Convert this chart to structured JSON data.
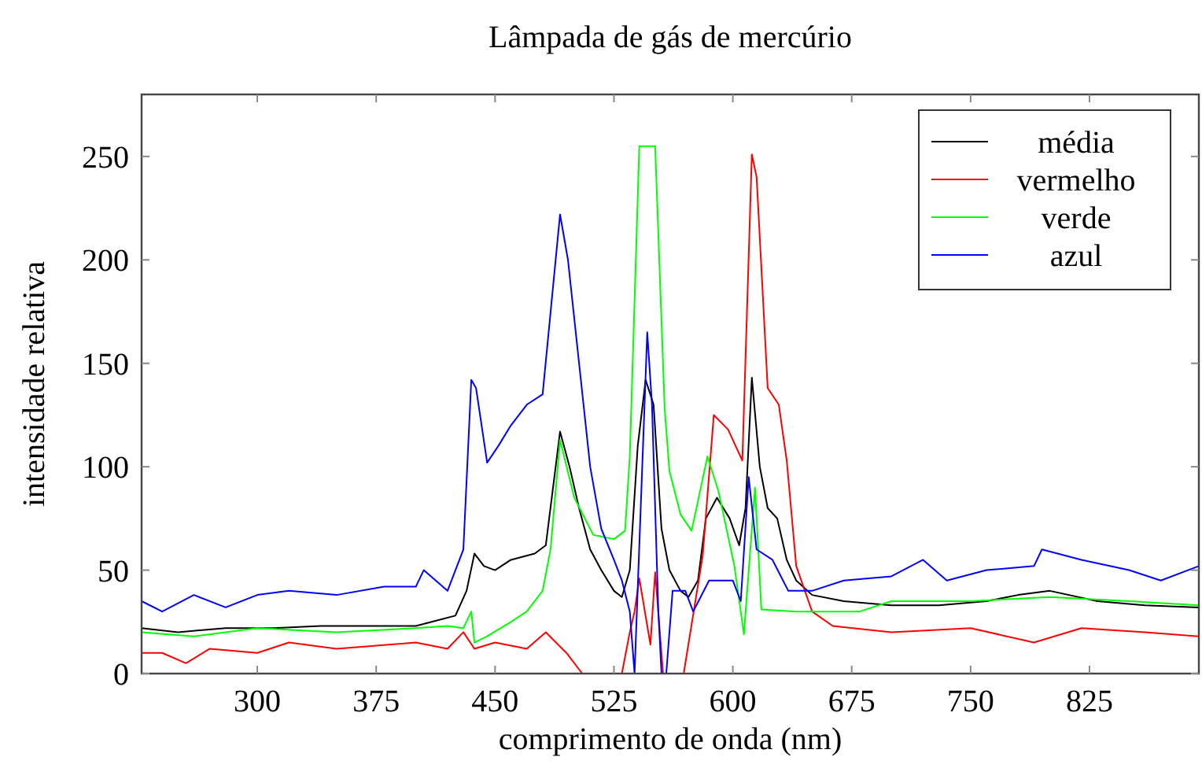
{
  "chart_data": {
    "type": "line",
    "title": "Lâmpada de gás de mercúrio",
    "xlabel": "comprimento de onda (nm)",
    "ylabel": "intensidade relativa",
    "xlim": [
      227,
      894
    ],
    "ylim": [
      0,
      280
    ],
    "xticks": [
      300,
      375,
      450,
      525,
      600,
      675,
      750,
      825
    ],
    "yticks": [
      0,
      50,
      100,
      150,
      200,
      250
    ],
    "legend": "top right",
    "marker": "none",
    "line_style": "solid",
    "series": [
      {
        "name": "média",
        "color": "#000000",
        "x": [
          227,
          250,
          280,
          310,
          340,
          370,
          400,
          410,
          425,
          432,
          437,
          443,
          450,
          460,
          475,
          482,
          491,
          497,
          503,
          510,
          517,
          525,
          530,
          535,
          540,
          545,
          550,
          555,
          560,
          567,
          572,
          578,
          583,
          590,
          598,
          604,
          608,
          612,
          617,
          622,
          628,
          634,
          640,
          650,
          670,
          700,
          730,
          760,
          780,
          800,
          830,
          860,
          894
        ],
        "values": [
          22,
          20,
          22,
          22,
          23,
          23,
          23,
          25,
          28,
          40,
          58,
          52,
          50,
          55,
          58,
          62,
          117,
          100,
          80,
          60,
          50,
          40,
          37,
          50,
          110,
          142,
          130,
          70,
          50,
          40,
          37,
          45,
          75,
          85,
          75,
          62,
          80,
          143,
          100,
          80,
          75,
          55,
          45,
          38,
          35,
          33,
          33,
          35,
          38,
          40,
          35,
          33,
          32
        ]
      },
      {
        "name": "vermelho",
        "color": "#ff0000",
        "x": [
          227,
          240,
          255,
          270,
          300,
          320,
          350,
          400,
          420,
          430,
          437,
          450,
          470,
          482,
          495,
          505,
          530,
          535,
          538,
          541,
          548,
          551,
          556,
          569,
          581,
          588,
          597,
          606,
          612,
          615,
          622,
          629,
          634,
          640,
          650,
          663,
          700,
          750,
          790,
          820,
          860,
          894
        ],
        "values": [
          10,
          10,
          5,
          12,
          10,
          15,
          12,
          15,
          12,
          20,
          12,
          15,
          12,
          20,
          10,
          0,
          0,
          20,
          30,
          46,
          14,
          49,
          0,
          0,
          57,
          125,
          118,
          103,
          251,
          240,
          138,
          130,
          103,
          52,
          30,
          23,
          20,
          22,
          15,
          22,
          20,
          18
        ]
      },
      {
        "name": "verde",
        "color": "#00ff00",
        "x": [
          227,
          260,
          300,
          350,
          400,
          420,
          430,
          435,
          437,
          445,
          460,
          470,
          480,
          485,
          491,
          500,
          512,
          525,
          532,
          535,
          541,
          551,
          557,
          560,
          567,
          574,
          584,
          591,
          601,
          607,
          614,
          618,
          640,
          680,
          700,
          750,
          800,
          850,
          894
        ],
        "values": [
          20,
          18,
          22,
          20,
          22,
          23,
          22,
          30,
          15,
          18,
          25,
          30,
          40,
          60,
          113,
          85,
          67,
          65,
          69,
          105,
          255,
          255,
          128,
          98,
          77,
          69,
          105,
          88,
          52,
          19,
          90,
          31,
          30,
          30,
          35,
          35,
          37,
          35,
          33
        ]
      },
      {
        "name": "azul",
        "color": "#0000ff",
        "x": [
          227,
          240,
          260,
          280,
          300,
          320,
          350,
          380,
          400,
          405,
          420,
          430,
          435,
          438,
          445,
          452,
          460,
          470,
          480,
          491,
          496,
          503,
          510,
          517,
          525,
          530,
          535,
          538,
          546,
          549,
          553,
          555,
          558,
          562,
          570,
          575,
          585,
          600,
          605,
          610,
          615,
          625,
          635,
          650,
          670,
          700,
          720,
          735,
          760,
          790,
          795,
          820,
          850,
          870,
          894
        ],
        "values": [
          35,
          30,
          38,
          32,
          38,
          40,
          38,
          42,
          42,
          50,
          40,
          60,
          142,
          138,
          102,
          110,
          120,
          130,
          135,
          222,
          200,
          150,
          100,
          70,
          55,
          45,
          30,
          0,
          165,
          130,
          30,
          0,
          0,
          40,
          40,
          30,
          45,
          45,
          35,
          95,
          60,
          55,
          40,
          40,
          45,
          47,
          55,
          45,
          50,
          52,
          60,
          55,
          50,
          45,
          52
        ]
      }
    ]
  }
}
